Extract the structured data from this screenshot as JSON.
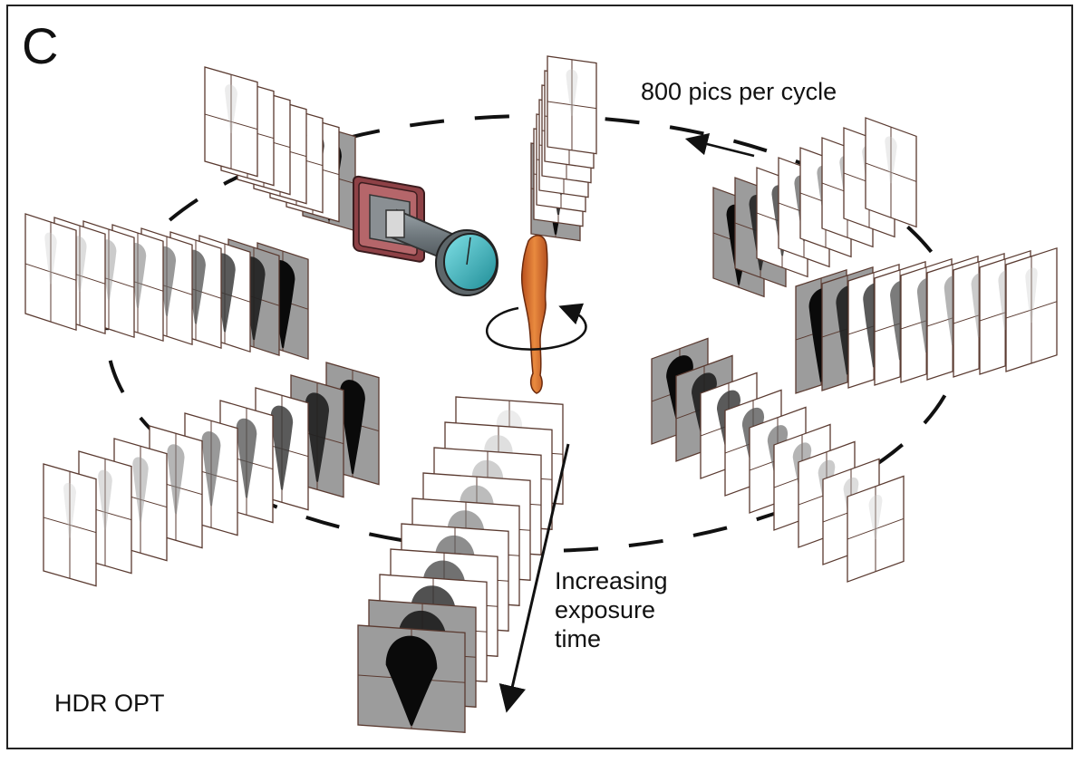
{
  "figure": {
    "panel_letter": "C",
    "cycle_label": "800 pics per cycle",
    "exposure_label": [
      "Increasing",
      "exposure",
      "time"
    ],
    "method_label": "HDR OPT"
  },
  "rings": [
    {
      "name": "top-left-stack",
      "frames": 7,
      "dark_end": "front"
    },
    {
      "name": "top-center-stack",
      "frames": 7,
      "dark_end": "front"
    },
    {
      "name": "top-right-stack",
      "frames": 8,
      "dark_end": "front"
    },
    {
      "name": "left-stack",
      "frames": 9,
      "dark_end": "front"
    },
    {
      "name": "right-stack",
      "frames": 9,
      "dark_end": "front"
    },
    {
      "name": "lower-left-stack",
      "frames": 9,
      "dark_end": "front"
    },
    {
      "name": "lower-right-stack",
      "frames": 9,
      "dark_end": "front"
    },
    {
      "name": "bottom-stack",
      "frames": 10,
      "dark_end": "back"
    }
  ],
  "colors": {
    "camera_body": "#a0555a",
    "camera_lens": "#3fb6bf",
    "specimen": "#d9702e",
    "frame_shade": "#9c9c9c",
    "ink": "#111111"
  }
}
